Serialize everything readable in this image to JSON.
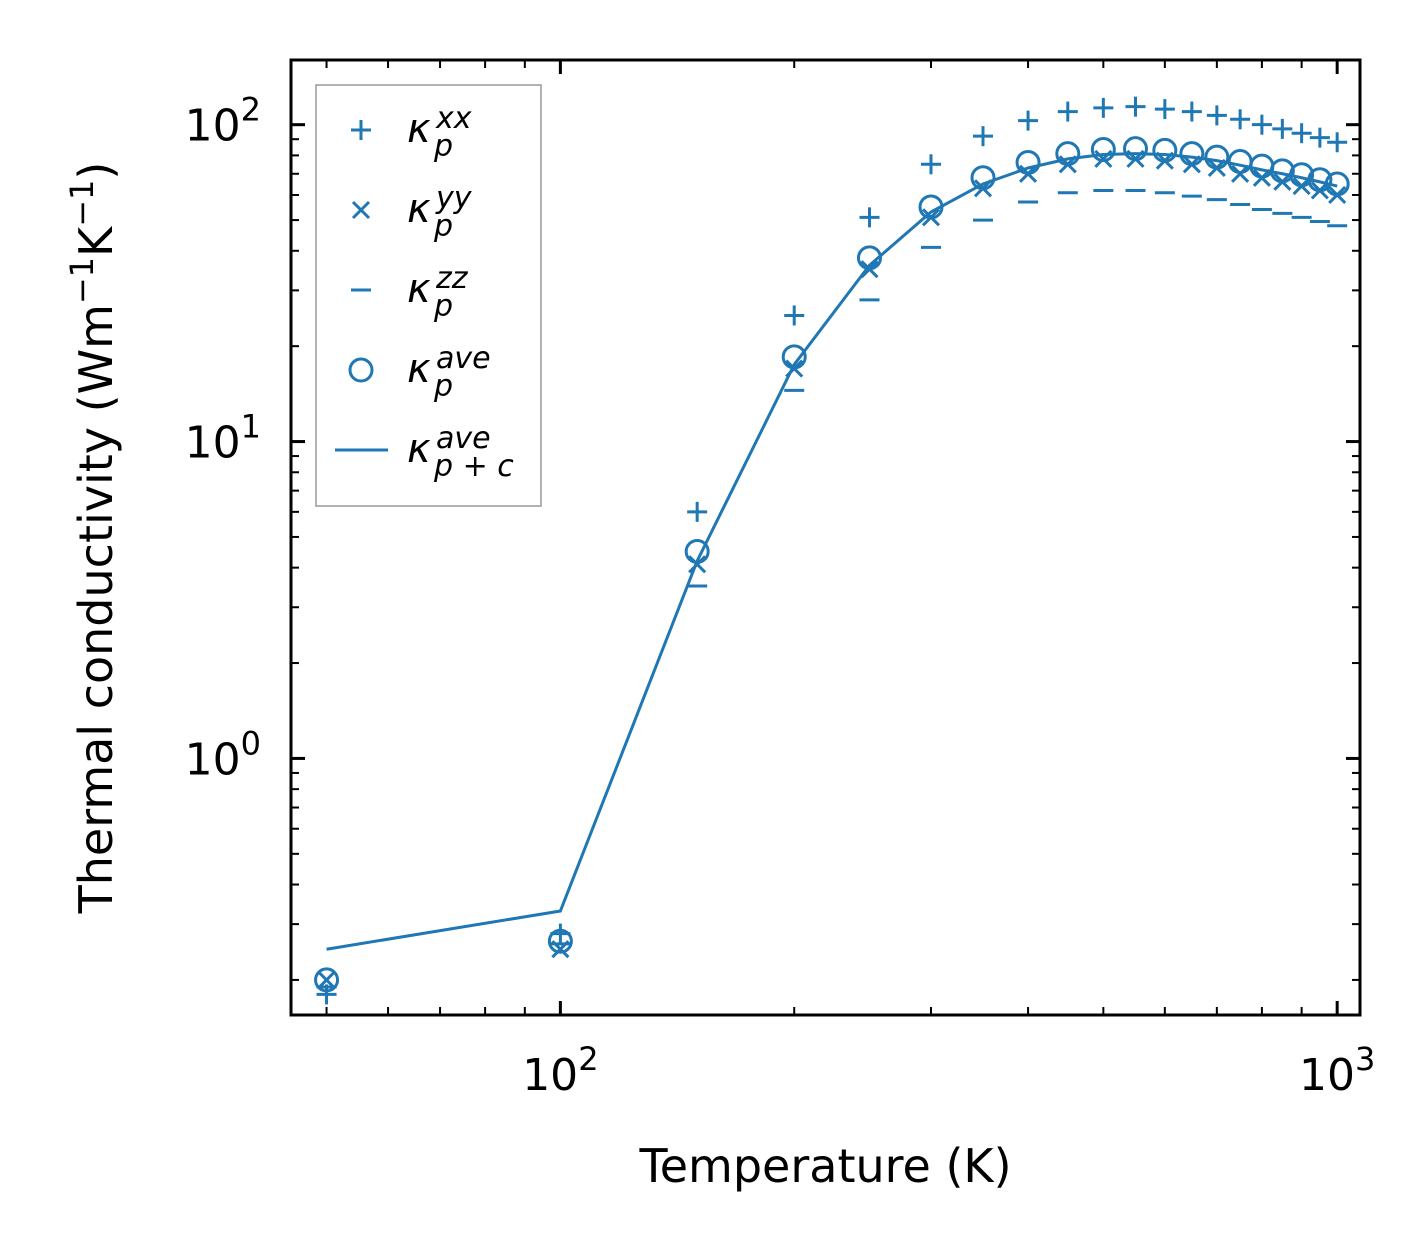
{
  "chart_data": {
    "type": "scatter",
    "xscale": "log",
    "yscale": "log",
    "xlabel": "Temperature (K)",
    "ylabel": {
      "prefix": "Thermal conductivity (Wm",
      "exp1": "−1",
      "mid": "K",
      "exp2": "−1",
      "suffix": ")"
    },
    "xlim": [
      45,
      1070
    ],
    "ylim": [
      0.155,
      160
    ],
    "xticks": [
      {
        "value": 100,
        "base": "10",
        "exp": "2"
      },
      {
        "value": 1000,
        "base": "10",
        "exp": "3"
      }
    ],
    "yticks": [
      {
        "value": 1,
        "base": "10",
        "exp": "0"
      },
      {
        "value": 10,
        "base": "10",
        "exp": "1"
      },
      {
        "value": 100,
        "base": "10",
        "exp": "2"
      }
    ],
    "color": "#1f77b4",
    "x": [
      50,
      100,
      150,
      200,
      250,
      300,
      350,
      400,
      450,
      500,
      550,
      600,
      650,
      700,
      750,
      800,
      850,
      900,
      950,
      1000
    ],
    "series": [
      {
        "name": "xx",
        "marker": "plus",
        "label": "κ",
        "sub": "p",
        "sup": "xx",
        "values": [
          0.18,
          0.28,
          6.0,
          25,
          51,
          75,
          92,
          103,
          110,
          113,
          114,
          112,
          110,
          107,
          104,
          100,
          97,
          94,
          91,
          88
        ]
      },
      {
        "name": "yy",
        "marker": "x",
        "label": "κ",
        "sub": "p",
        "sup": "yy",
        "values": [
          0.2,
          0.25,
          4.1,
          17,
          35,
          51,
          63,
          70,
          75,
          78,
          78,
          77,
          75,
          73,
          70,
          68,
          66,
          64,
          62,
          60
        ]
      },
      {
        "name": "zz",
        "marker": "hline",
        "label": "κ",
        "sub": "p",
        "sup": "zz",
        "values": [
          0.19,
          0.26,
          3.5,
          14.5,
          28,
          41,
          50,
          57,
          61,
          62,
          62,
          61,
          59.5,
          58,
          56,
          54,
          52.5,
          51,
          49.5,
          48
        ]
      },
      {
        "name": "ave",
        "marker": "circle",
        "label": "κ",
        "sub": "p",
        "sup": "ave",
        "values": [
          0.2,
          0.265,
          4.5,
          18.5,
          38,
          55,
          68,
          76,
          81,
          83.5,
          84,
          83,
          81,
          79,
          76.5,
          74,
          71.5,
          69.5,
          67,
          65
        ]
      },
      {
        "name": "ave_pc",
        "marker": "line",
        "label": "κ",
        "sub": "p + c",
        "sup": "ave",
        "values": [
          0.25,
          0.33,
          4.2,
          17.5,
          36,
          53,
          65,
          73,
          78,
          80.5,
          81,
          80.5,
          79,
          77,
          74.5,
          72,
          70,
          68,
          66,
          64
        ]
      }
    ]
  }
}
